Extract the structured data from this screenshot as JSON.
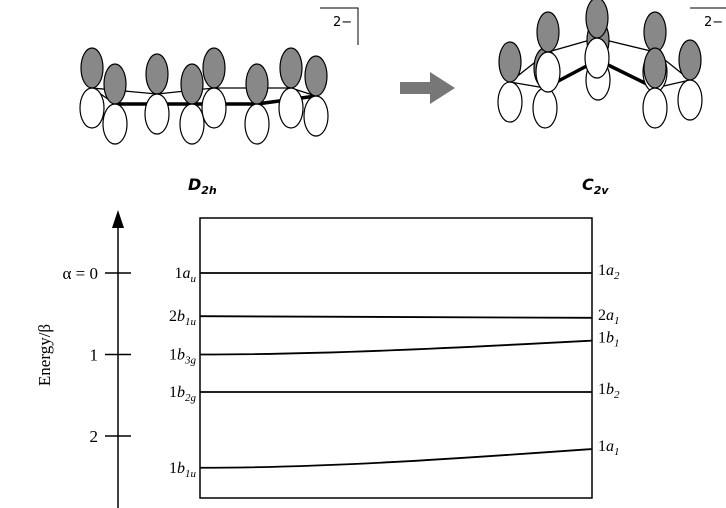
{
  "charge_left": "2−",
  "charge_right": "2−",
  "title_left": {
    "main": "D",
    "sub": "2h"
  },
  "title_right": {
    "main": "C",
    "sub": "2v"
  },
  "axis": {
    "label": "Energy/β",
    "ticks": [
      {
        "value": 0,
        "label": "α = 0"
      },
      1,
      2
    ]
  },
  "levels": [
    {
      "left_label": {
        "num": "1",
        "sym": "a",
        "sub": "u"
      },
      "right_label": {
        "num": "1",
        "sym": "a",
        "sub": "2"
      },
      "left": 0,
      "right": 0
    },
    {
      "left_label": {
        "num": "2",
        "sym": "b",
        "sub": "1u"
      },
      "right_label": {
        "num": "2",
        "sym": "a",
        "sub": "1"
      },
      "left": 0.53,
      "right": 0.55
    },
    {
      "left_label": {
        "num": "1",
        "sym": "b",
        "sub": "3g"
      },
      "right_label": {
        "num": "1",
        "sym": "b",
        "sub": "1"
      },
      "left": 1.0,
      "right": 0.83
    },
    {
      "left_label": {
        "num": "1",
        "sym": "b",
        "sub": "2g"
      },
      "right_label": {
        "num": "1",
        "sym": "b",
        "sub": "2"
      },
      "left": 1.46,
      "right": 1.46
    },
    {
      "left_label": {
        "num": "1",
        "sym": "b",
        "sub": "1u"
      },
      "right_label": {
        "num": "1",
        "sym": "a",
        "sub": "1"
      },
      "left": 2.39,
      "right": 2.16
    }
  ]
}
